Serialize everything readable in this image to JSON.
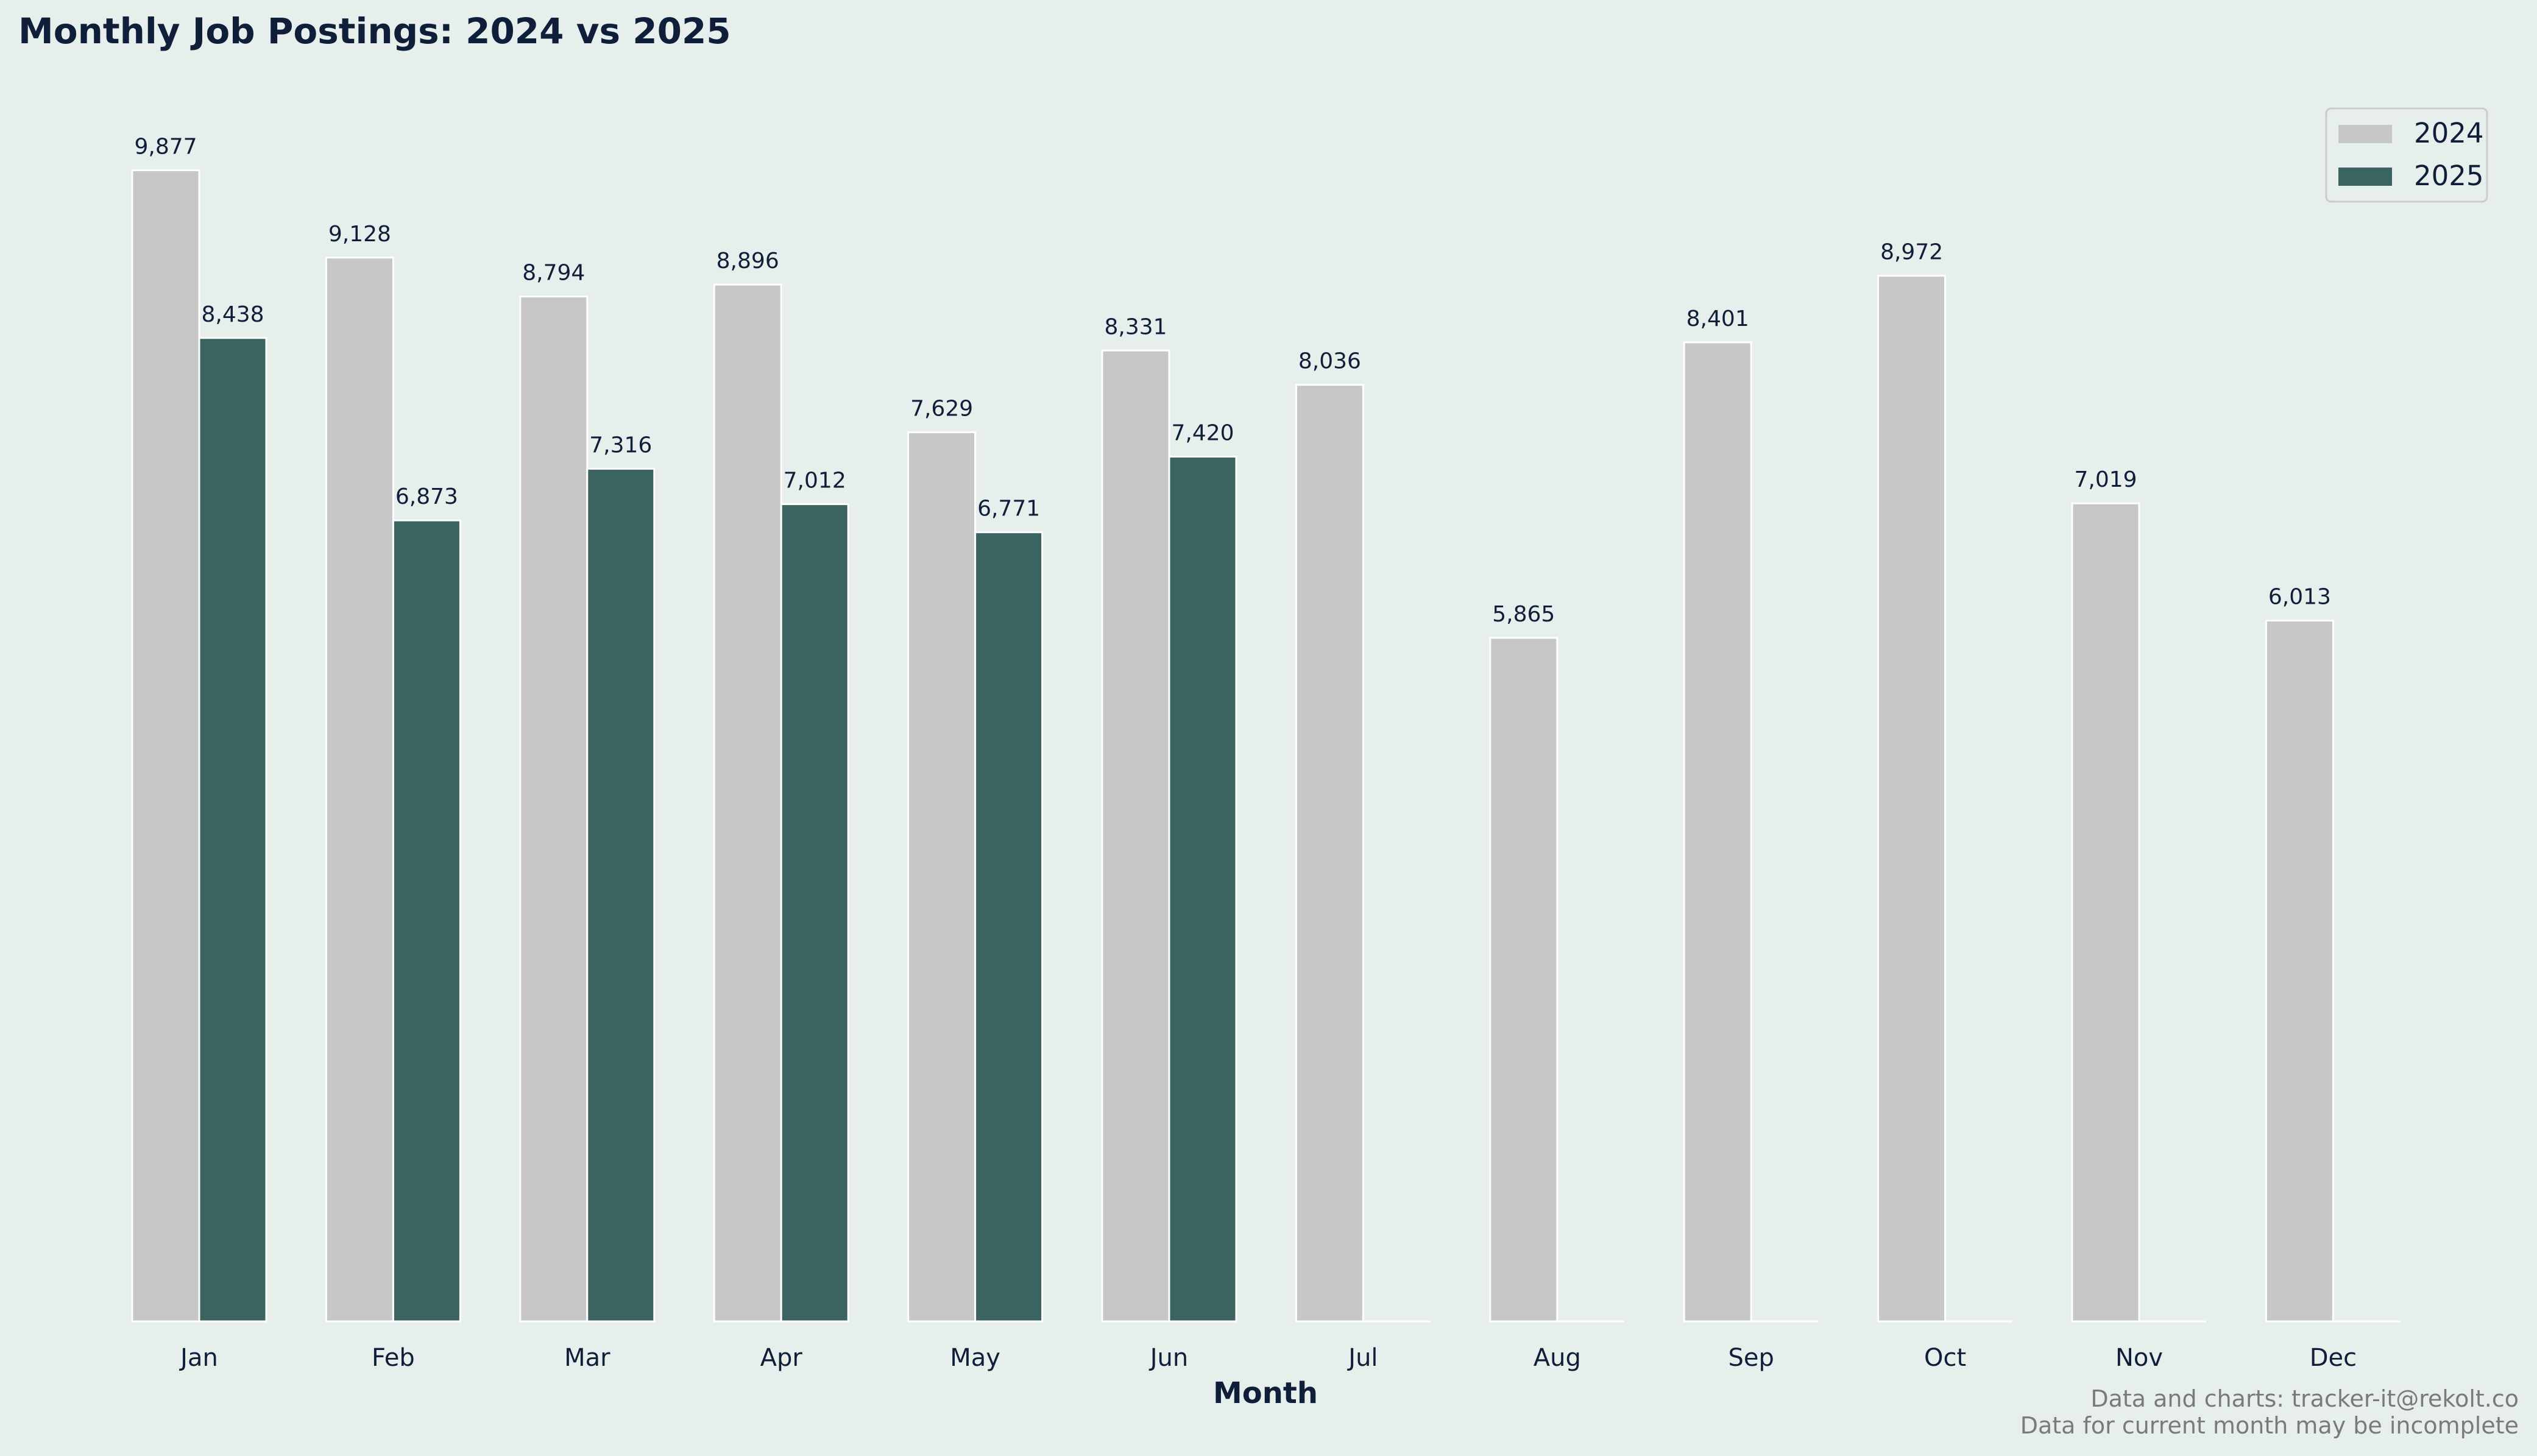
{
  "chart_data": {
    "type": "bar",
    "title": "Monthly Job Postings: 2024 vs 2025",
    "xlabel": "Month",
    "ylabel": "",
    "ylim": [
      0,
      10371
    ],
    "grid": false,
    "legend_position": "top-right",
    "categories": [
      "Jan",
      "Feb",
      "Mar",
      "Apr",
      "May",
      "Jun",
      "Jul",
      "Aug",
      "Sep",
      "Oct",
      "Nov",
      "Dec"
    ],
    "series": [
      {
        "name": "2024",
        "color": "#c6c7c6",
        "values": [
          9877,
          9128,
          8794,
          8896,
          7629,
          8331,
          8036,
          5865,
          8401,
          8972,
          7019,
          6013
        ],
        "labels": [
          "9,877",
          "9,128",
          "8,794",
          "8,896",
          "7,629",
          "8,331",
          "8,036",
          "5,865",
          "8,401",
          "8,972",
          "7,019",
          "6,013"
        ]
      },
      {
        "name": "2025",
        "color": "#3b6461",
        "values": [
          8438,
          6873,
          7316,
          7012,
          6771,
          7420,
          0,
          0,
          0,
          0,
          0,
          0
        ],
        "labels": [
          "8,438",
          "6,873",
          "7,316",
          "7,012",
          "6,771",
          "7,420",
          "",
          "",
          "",
          "",
          "",
          ""
        ]
      }
    ],
    "footer": [
      "Data and charts: tracker-it@rekolt.co",
      "Data for current month may be incomplete"
    ]
  }
}
